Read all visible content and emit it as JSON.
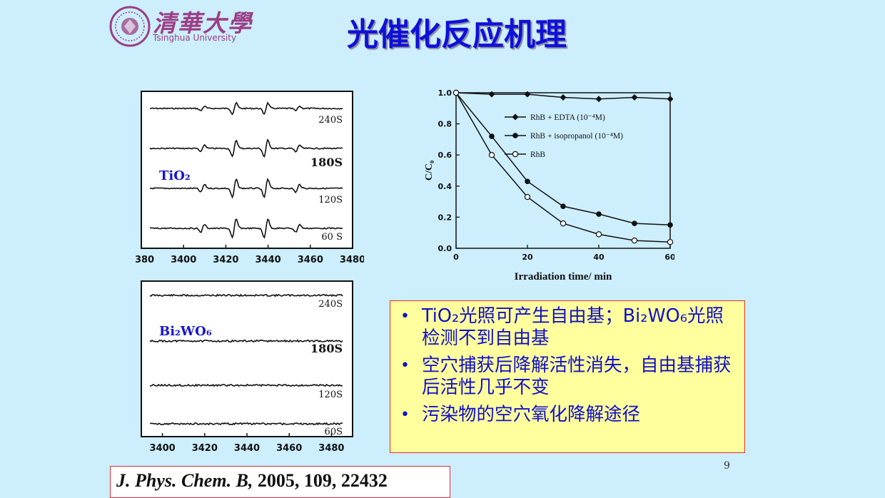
{
  "header": {
    "title": "光催化反应机理",
    "logo_text": "清華大學",
    "logo_subtext": "Tsinghua University"
  },
  "colors": {
    "background": "#cdeefc",
    "title": "#1010d8",
    "bullet_text": "#1010c8",
    "box_fill": "#ffff9e",
    "box_border": "#e0303a",
    "logo": "#9a3f86",
    "series_label": "#1515d0"
  },
  "bullets": [
    {
      "text": "TiO₂光照可产生自由基；Bi₂WO₆光照检测不到自由基"
    },
    {
      "text": "空穴捕获后降解活性消失，自由基捕获后活性几乎不变"
    },
    {
      "text": "污染物的空穴氧化降解途径"
    }
  ],
  "citation": {
    "journal": "J. Phys. Chem. B,",
    "details": "2005, 109, 22432"
  },
  "page_number": "9",
  "chart_data": [
    {
      "type": "line",
      "label": "TiO₂",
      "x_ticks": [
        3380,
        3400,
        3420,
        3440,
        3460,
        3480
      ],
      "xlim": [
        3380,
        3480
      ],
      "traces": [
        {
          "name": "240S",
          "peaks": [
            {
              "x": 3409,
              "amp": 0.35
            },
            {
              "x": 3424,
              "amp": 0.85
            },
            {
              "x": 3439,
              "amp": 0.85
            },
            {
              "x": 3454,
              "amp": 0.35
            }
          ]
        },
        {
          "name": "180S",
          "peaks": [
            {
              "x": 3409,
              "amp": 0.55
            },
            {
              "x": 3424,
              "amp": 1.3
            },
            {
              "x": 3439,
              "amp": 1.3
            },
            {
              "x": 3454,
              "amp": 0.55
            }
          ]
        },
        {
          "name": "120S",
          "peaks": [
            {
              "x": 3409,
              "amp": 0.6
            },
            {
              "x": 3424,
              "amp": 1.4
            },
            {
              "x": 3439,
              "amp": 1.4
            },
            {
              "x": 3454,
              "amp": 0.6
            }
          ]
        },
        {
          "name": "60 S",
          "peaks": [
            {
              "x": 3409,
              "amp": 0.6
            },
            {
              "x": 3424,
              "amp": 1.45
            },
            {
              "x": 3439,
              "amp": 1.45
            },
            {
              "x": 3454,
              "amp": 0.6
            }
          ]
        }
      ]
    },
    {
      "type": "line",
      "label": "Bi₂WO₆",
      "x_ticks": [
        3400,
        3420,
        3440,
        3460,
        3480
      ],
      "xlim": [
        3390,
        3490
      ],
      "traces": [
        {
          "name": "240S",
          "peaks": []
        },
        {
          "name": "180S",
          "peaks": []
        },
        {
          "name": "120S",
          "peaks": []
        },
        {
          "name": "60S",
          "peaks": []
        }
      ]
    },
    {
      "type": "line",
      "xlabel": "Irradiation time/ min",
      "ylabel": "C/C₀",
      "xlim": [
        0,
        60
      ],
      "ylim": [
        0,
        1.0
      ],
      "x_ticks": [
        0,
        20,
        40,
        60
      ],
      "y_ticks": [
        "0.0",
        "0.2",
        "0.4",
        "0.6",
        "0.8",
        "1.0"
      ],
      "legend_position": "top-right",
      "x": [
        0,
        10,
        20,
        30,
        40,
        50,
        60
      ],
      "series": [
        {
          "name": "RhB + EDTA (10⁻⁴M)",
          "marker": "diamond",
          "values": [
            1.0,
            0.99,
            0.99,
            0.97,
            0.96,
            0.97,
            0.96
          ]
        },
        {
          "name": "RhB + isopropanol  (10⁻⁴M)",
          "marker": "filled-circle",
          "values": [
            1.0,
            0.72,
            0.43,
            0.27,
            0.22,
            0.16,
            0.15
          ]
        },
        {
          "name": "RhB",
          "marker": "open-circle",
          "values": [
            1.0,
            0.6,
            0.33,
            0.16,
            0.09,
            0.05,
            0.04
          ]
        }
      ]
    }
  ]
}
